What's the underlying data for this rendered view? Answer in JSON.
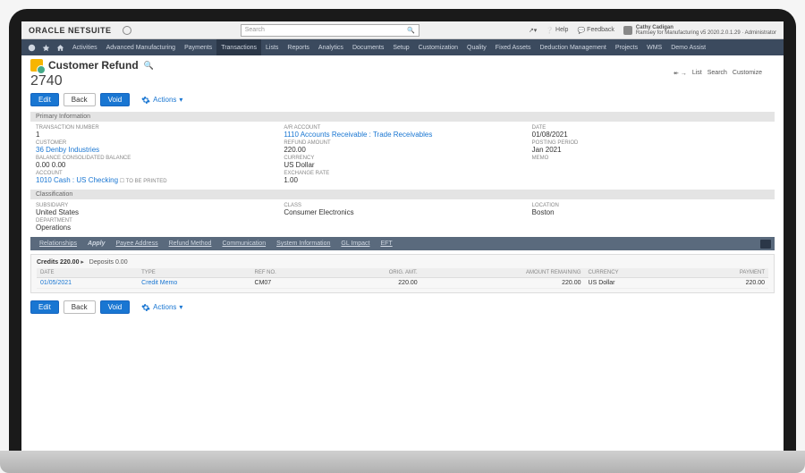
{
  "brand": {
    "oracle": "ORACLE",
    "netsuite": "NETSUITE"
  },
  "search": {
    "placeholder": "Search"
  },
  "topRight": {
    "help": "Help",
    "feedback": "Feedback",
    "user": {
      "name": "Cathy Cadigan",
      "role": "Ramsey for Manufacturing v5 2020.2.0.1.29 · Administrator"
    }
  },
  "nav": {
    "items": [
      "Activities",
      "Advanced Manufacturing",
      "Payments",
      "Transactions",
      "Lists",
      "Reports",
      "Analytics",
      "Documents",
      "Setup",
      "Customization",
      "Quality",
      "Fixed Assets",
      "Deduction Management",
      "Projects",
      "WMS",
      "Demo Assist"
    ],
    "activeIndex": 3
  },
  "pageLinks": {
    "list": "List",
    "search": "Search",
    "customize": "Customize",
    "arrows": "↞  →"
  },
  "page": {
    "title": "Customer Refund",
    "number": "2740"
  },
  "buttons": {
    "edit": "Edit",
    "back": "Back",
    "void": "Void",
    "actions": "Actions"
  },
  "section1": "Primary Information",
  "primary": {
    "col1": [
      {
        "lbl": "TRANSACTION NUMBER",
        "val": "1"
      },
      {
        "lbl": "CUSTOMER",
        "val": "36 Denby Industries",
        "link": true
      },
      {
        "lbl": "BALANCE   CONSOLIDATED BALANCE",
        "val": "0.00          0.00"
      },
      {
        "lbl": "ACCOUNT",
        "val": "1010 Cash : US Checking",
        "link": true,
        "extra": " ☐ TO BE PRINTED"
      }
    ],
    "col2": [
      {
        "lbl": "A/R ACCOUNT",
        "val": "1110 Accounts Receivable : Trade Receivables",
        "link": true
      },
      {
        "lbl": "REFUND AMOUNT",
        "val": "220.00"
      },
      {
        "lbl": "CURRENCY",
        "val": "US Dollar"
      },
      {
        "lbl": "EXCHANGE RATE",
        "val": "1.00"
      }
    ],
    "col3": [
      {
        "lbl": "DATE",
        "val": "01/08/2021"
      },
      {
        "lbl": "POSTING PERIOD",
        "val": "Jan 2021"
      },
      {
        "lbl": "MEMO",
        "val": ""
      }
    ]
  },
  "section2": "Classification",
  "classification": {
    "col1": [
      {
        "lbl": "SUBSIDIARY",
        "val": "United States"
      },
      {
        "lbl": "DEPARTMENT",
        "val": "Operations"
      }
    ],
    "col2": [
      {
        "lbl": "CLASS",
        "val": "Consumer Electronics"
      }
    ],
    "col3": [
      {
        "lbl": "LOCATION",
        "val": "Boston"
      }
    ]
  },
  "subTabs": {
    "items": [
      "Relationships",
      "Apply",
      "Payee Address",
      "Refund Method",
      "Communication",
      "System Information",
      "GL Impact",
      "EFT"
    ],
    "activeIndex": 1
  },
  "apply": {
    "creditsLabel": "Credits 220.00",
    "depositsLabel": "Deposits 0.00",
    "columns": [
      "DATE",
      "TYPE",
      "REF NO.",
      "ORIG. AMT.",
      "AMOUNT REMAINING",
      "CURRENCY",
      "PAYMENT"
    ],
    "row": {
      "date": "01/05/2021",
      "type": "Credit Memo",
      "ref": "CM07",
      "orig": "220.00",
      "remain": "220.00",
      "currency": "US Dollar",
      "payment": "220.00"
    }
  }
}
